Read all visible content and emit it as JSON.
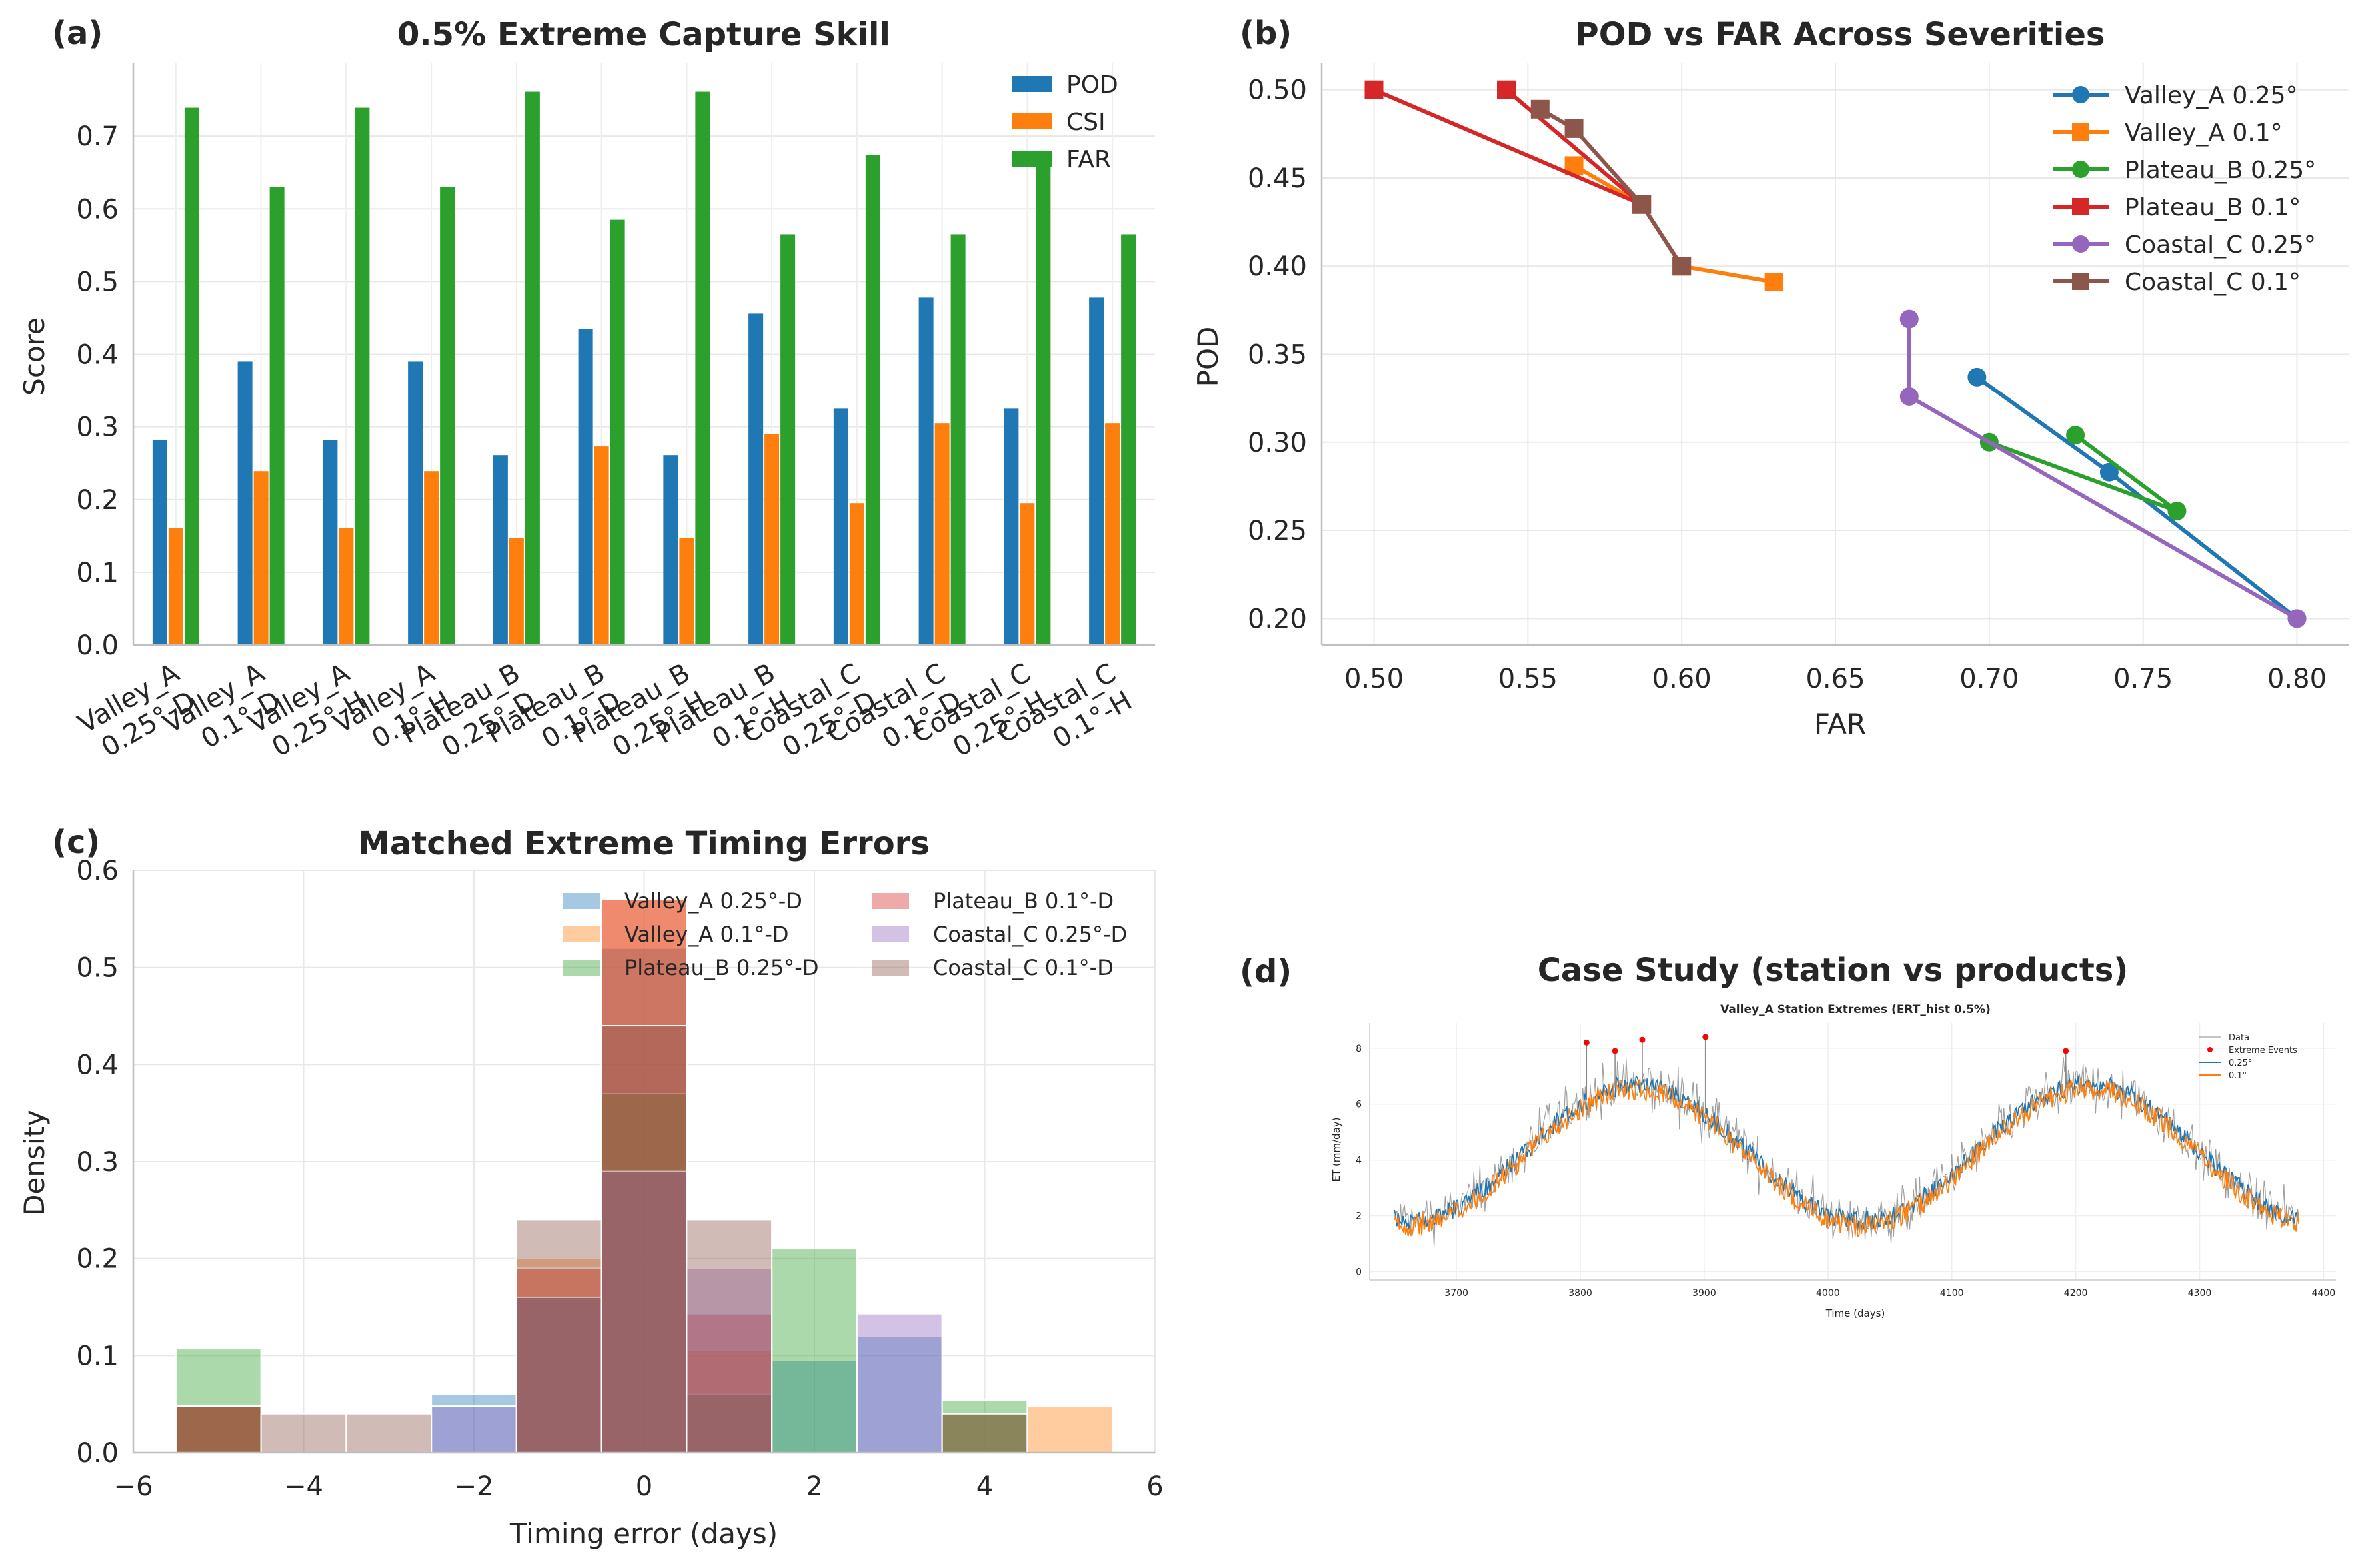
{
  "figure": {
    "panel_labels": [
      "(a)",
      "(b)",
      "(c)",
      "(d)"
    ]
  },
  "colors": {
    "blue": "#1f77b4",
    "orange": "#ff7f0e",
    "green": "#2ca02c",
    "red": "#d62728",
    "purple": "#9467bd",
    "brown": "#8c564b",
    "grid": "#e6e6e6",
    "gray": "#888888"
  },
  "chart_data": [
    {
      "id": "a",
      "type": "bar",
      "title": "0.5% Extreme Capture Skill",
      "xlabel": "",
      "ylabel": "Score",
      "ylim": [
        0,
        0.8
      ],
      "yticks": [
        0.0,
        0.1,
        0.2,
        0.3,
        0.4,
        0.5,
        0.6,
        0.7
      ],
      "legend": "top-right",
      "categories": [
        [
          "Valley_A",
          "0.25°-D"
        ],
        [
          "Valley_A",
          "0.1°-D"
        ],
        [
          "Valley_A",
          "0.25°-H"
        ],
        [
          "Valley_A",
          "0.1°-H"
        ],
        [
          "Plateau_B",
          "0.25°-D"
        ],
        [
          "Plateau_B",
          "0.1°-D"
        ],
        [
          "Plateau_B",
          "0.25°-H"
        ],
        [
          "Plateau_B",
          "0.1°-H"
        ],
        [
          "Coastal_C",
          "0.25°-D"
        ],
        [
          "Coastal_C",
          "0.1°-D"
        ],
        [
          "Coastal_C",
          "0.25°-H"
        ],
        [
          "Coastal_C",
          "0.1°-H"
        ]
      ],
      "series": [
        {
          "name": "POD",
          "color": "#1f77b4",
          "values": [
            0.282,
            0.39,
            0.282,
            0.39,
            0.261,
            0.435,
            0.261,
            0.456,
            0.325,
            0.478,
            0.325,
            0.478
          ]
        },
        {
          "name": "CSI",
          "color": "#ff7f0e",
          "values": [
            0.161,
            0.239,
            0.161,
            0.239,
            0.147,
            0.273,
            0.147,
            0.29,
            0.195,
            0.305,
            0.195,
            0.305
          ]
        },
        {
          "name": "FAR",
          "color": "#2ca02c",
          "values": [
            0.739,
            0.63,
            0.739,
            0.63,
            0.761,
            0.585,
            0.761,
            0.565,
            0.674,
            0.565,
            0.674,
            0.565
          ]
        }
      ]
    },
    {
      "id": "b",
      "type": "line",
      "title": "POD vs FAR Across Severities",
      "xlabel": "FAR",
      "ylabel": "POD",
      "xlim": [
        0.483,
        0.817
      ],
      "ylim": [
        0.185,
        0.515
      ],
      "xticks": [
        0.5,
        0.55,
        0.6,
        0.65,
        0.7,
        0.75,
        0.8
      ],
      "yticks": [
        0.2,
        0.25,
        0.3,
        0.35,
        0.4,
        0.45,
        0.5
      ],
      "legend": "top-right",
      "series": [
        {
          "name": "Valley_A 0.25°",
          "color": "#1f77b4",
          "marker": "circle",
          "points": [
            [
              0.696,
              0.337
            ],
            [
              0.739,
              0.283
            ],
            [
              0.8,
              0.2
            ]
          ]
        },
        {
          "name": "Valley_A 0.1°",
          "color": "#ff7f0e",
          "marker": "square",
          "points": [
            [
              0.565,
              0.457
            ],
            [
              0.587,
              0.435
            ],
            [
              0.6,
              0.4
            ],
            [
              0.63,
              0.391
            ]
          ]
        },
        {
          "name": "Plateau_B 0.25°",
          "color": "#2ca02c",
          "marker": "circle",
          "points": [
            [
              0.728,
              0.304
            ],
            [
              0.761,
              0.261
            ],
            [
              0.7,
              0.3
            ]
          ]
        },
        {
          "name": "Plateau_B 0.1°",
          "color": "#d62728",
          "marker": "square",
          "points": [
            [
              0.5,
              0.5
            ],
            [
              0.587,
              0.435
            ],
            [
              0.543,
              0.5
            ]
          ]
        },
        {
          "name": "Coastal_C 0.25°",
          "color": "#9467bd",
          "marker": "circle",
          "points": [
            [
              0.674,
              0.37
            ],
            [
              0.674,
              0.326
            ],
            [
              0.8,
              0.2
            ]
          ]
        },
        {
          "name": "Coastal_C 0.1°",
          "color": "#8c564b",
          "marker": "square",
          "points": [
            [
              0.554,
              0.489
            ],
            [
              0.565,
              0.478
            ],
            [
              0.587,
              0.435
            ],
            [
              0.6,
              0.4
            ]
          ]
        }
      ]
    },
    {
      "id": "c",
      "type": "histogram",
      "title": "Matched Extreme Timing Errors",
      "xlabel": "Timing error (days)",
      "ylabel": "Density",
      "xlim": [
        -6,
        6
      ],
      "ylim": [
        0,
        0.6
      ],
      "xticks": [
        -6,
        -4,
        -2,
        0,
        2,
        4,
        6
      ],
      "yticks": [
        0.0,
        0.1,
        0.2,
        0.3,
        0.4,
        0.5,
        0.6
      ],
      "legend": "top-right",
      "bin_edges": [
        -5.5,
        -4.5,
        -3.5,
        -2.5,
        -1.5,
        -0.5,
        0.5,
        1.5,
        2.5,
        3.5,
        4.5,
        5.5
      ],
      "series": [
        {
          "name": "Valley_A 0.25°-D",
          "color": "#1f77b4",
          "values": [
            0.048,
            0,
            0,
            0.06,
            0.16,
            0.52,
            0.06,
            0.095,
            0.12,
            0.04,
            0
          ]
        },
        {
          "name": "Valley_A 0.1°-D",
          "color": "#ff7f0e",
          "values": [
            0.048,
            0,
            0,
            0,
            0.2,
            0.57,
            0.105,
            0,
            0,
            0.04,
            0.048
          ]
        },
        {
          "name": "Plateau_B 0.25°-D",
          "color": "#2ca02c",
          "values": [
            0.107,
            0,
            0,
            0,
            0.16,
            0.37,
            0.06,
            0.21,
            0,
            0.054,
            0
          ]
        },
        {
          "name": "Plateau_B 0.1°-D",
          "color": "#d62728",
          "values": [
            0.048,
            0,
            0,
            0,
            0.19,
            0.57,
            0.143,
            0,
            0,
            0,
            0
          ]
        },
        {
          "name": "Coastal_C 0.25°-D",
          "color": "#9467bd",
          "values": [
            0,
            0,
            0,
            0.048,
            0.16,
            0.29,
            0.19,
            0,
            0.143,
            0,
            0
          ]
        },
        {
          "name": "Coastal_C 0.1°-D",
          "color": "#8c564b",
          "values": [
            0.048,
            0.04,
            0.04,
            0,
            0.24,
            0.44,
            0.24,
            0,
            0,
            0.04,
            0
          ]
        }
      ]
    },
    {
      "id": "d",
      "type": "line",
      "title": "Case Study (station vs products)",
      "inner_title": "Valley_A Station Extremes (ERT_hist 0.5%)",
      "xlabel": "Time (days)",
      "ylabel": "ET (mm/day)",
      "xlim": [
        3630,
        4410
      ],
      "ylim": [
        -0.3,
        8.9
      ],
      "xticks": [
        3700,
        3800,
        3900,
        4000,
        4100,
        4200,
        4300,
        4400
      ],
      "yticks": [
        0,
        2,
        4,
        6,
        8
      ],
      "legend": "top-right",
      "x_range": [
        3650,
        4380
      ],
      "series": [
        {
          "name": "Data",
          "color": "#888888"
        },
        {
          "name": "Extreme Events",
          "color": "#ff0000",
          "points": [
            [
              3805,
              8.2
            ],
            [
              3828,
              7.9
            ],
            [
              3850,
              8.3
            ],
            [
              3901,
              8.4
            ],
            [
              4192,
              7.9
            ]
          ]
        },
        {
          "name": "0.25°",
          "color": "#1f77b4"
        },
        {
          "name": "0.1°",
          "color": "#ff7f0e"
        }
      ],
      "seasonal": {
        "mean": 4.25,
        "amplitude": 2.45,
        "peak_day": 3845,
        "period_days": 365
      }
    }
  ]
}
